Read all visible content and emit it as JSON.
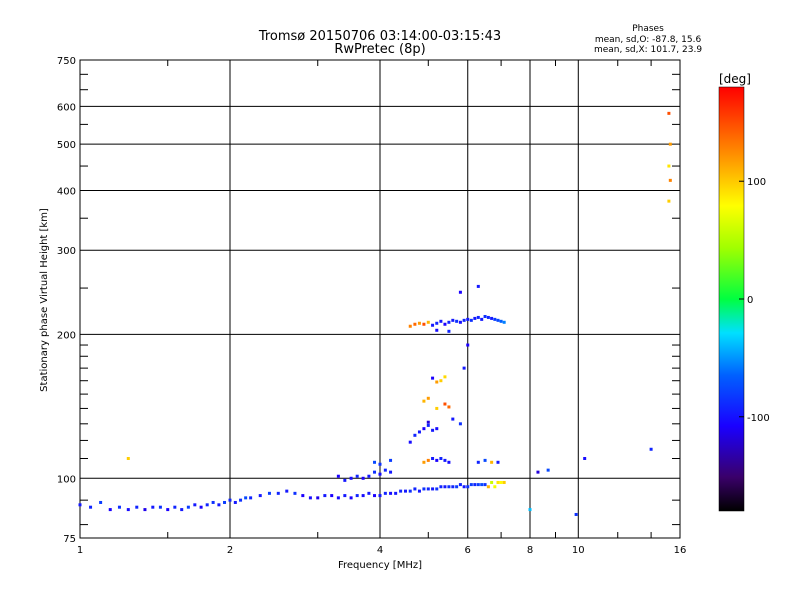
{
  "chart_data": {
    "type": "scatter",
    "title": "Tromsø 20150706 03:14:00-03:15:43",
    "subtitle": "RwPretec (8p)",
    "stats": {
      "heading": "Phases",
      "line1": "mean, sd,O: -87.8, 15.6",
      "line2": "mean, sd,X: 101.7, 23.9"
    },
    "xlabel": "Frequency [MHz]",
    "ylabel": "Stationary phase Virtual Height [km]",
    "xscale": "log",
    "yscale": "log",
    "xlim": [
      1,
      16
    ],
    "ylim": [
      75,
      750
    ],
    "x_ticks": [
      1,
      2,
      4,
      6,
      8,
      10,
      16
    ],
    "x_tick_labels": [
      "1",
      "2",
      "4",
      "6",
      "8",
      "10",
      "16"
    ],
    "y_ticks": [
      75,
      100,
      200,
      300,
      400,
      500,
      600,
      750
    ],
    "y_tick_labels": [
      "75",
      "100",
      "200",
      "300",
      "400",
      "500",
      "600",
      "750"
    ],
    "grid": true,
    "colorbar": {
      "label": "[deg]",
      "range": [
        -180,
        180
      ],
      "ticks": [
        100,
        0,
        -100
      ],
      "tick_labels": [
        "100",
        "0",
        "-100"
      ]
    },
    "series": [
      {
        "points": [
          [
            1.0,
            88,
            -100
          ],
          [
            1.05,
            87,
            -95
          ],
          [
            1.1,
            89,
            -85
          ],
          [
            1.15,
            86,
            -110
          ],
          [
            1.2,
            87,
            -90
          ],
          [
            1.25,
            86,
            -105
          ],
          [
            1.3,
            87,
            -95
          ],
          [
            1.35,
            86,
            -115
          ],
          [
            1.4,
            87,
            -100
          ],
          [
            1.45,
            87,
            -90
          ],
          [
            1.5,
            86,
            -110
          ],
          [
            1.55,
            87,
            -95
          ],
          [
            1.6,
            86,
            -100
          ],
          [
            1.65,
            87,
            -85
          ],
          [
            1.7,
            88,
            -100
          ],
          [
            1.75,
            87,
            -110
          ],
          [
            1.8,
            88,
            -95
          ],
          [
            1.85,
            89,
            -90
          ],
          [
            1.9,
            88,
            -100
          ],
          [
            1.95,
            89,
            -85
          ],
          [
            2.0,
            90,
            -95
          ],
          [
            2.05,
            89,
            -100
          ],
          [
            2.1,
            90,
            -90
          ],
          [
            2.15,
            91,
            -80
          ],
          [
            2.2,
            91,
            -95
          ],
          [
            2.3,
            92,
            -100
          ],
          [
            2.4,
            93,
            -85
          ],
          [
            2.5,
            93,
            -95
          ],
          [
            2.6,
            94,
            -100
          ],
          [
            2.7,
            93,
            -90
          ],
          [
            2.8,
            92,
            -110
          ],
          [
            2.9,
            91,
            -105
          ],
          [
            3.0,
            91,
            -115
          ],
          [
            3.1,
            92,
            -100
          ],
          [
            3.2,
            92,
            -110
          ],
          [
            3.3,
            91,
            -105
          ],
          [
            3.4,
            92,
            -100
          ],
          [
            3.5,
            91,
            -110
          ],
          [
            3.6,
            92,
            -95
          ],
          [
            3.7,
            92,
            -105
          ],
          [
            3.8,
            93,
            -100
          ],
          [
            3.9,
            92,
            -110
          ],
          [
            4.0,
            92,
            -100
          ],
          [
            4.1,
            93,
            -95
          ],
          [
            4.2,
            93,
            -105
          ],
          [
            4.3,
            93,
            -100
          ],
          [
            4.4,
            94,
            -95
          ],
          [
            4.5,
            94,
            -100
          ],
          [
            4.6,
            94,
            -90
          ],
          [
            4.7,
            95,
            -95
          ],
          [
            4.8,
            94,
            -100
          ],
          [
            4.9,
            95,
            -90
          ],
          [
            5.0,
            95,
            -95
          ],
          [
            5.1,
            95,
            -100
          ],
          [
            5.2,
            95,
            -90
          ],
          [
            5.3,
            96,
            -95
          ],
          [
            5.4,
            96,
            -100
          ],
          [
            5.5,
            96,
            -90
          ],
          [
            5.6,
            96,
            -95
          ],
          [
            5.7,
            96,
            -85
          ],
          [
            5.8,
            97,
            -95
          ],
          [
            5.9,
            96,
            -100
          ],
          [
            6.0,
            96,
            -90
          ],
          [
            6.1,
            97,
            -85
          ],
          [
            6.2,
            97,
            -95
          ],
          [
            6.3,
            97,
            -85
          ],
          [
            6.4,
            97,
            -80
          ],
          [
            6.5,
            97,
            -90
          ],
          [
            6.7,
            98,
            60
          ],
          [
            6.9,
            98,
            90
          ],
          [
            6.6,
            96,
            110
          ],
          [
            7.0,
            98,
            80
          ],
          [
            7.1,
            98,
            100
          ],
          [
            6.8,
            96,
            75
          ],
          [
            3.3,
            101,
            -110
          ],
          [
            3.4,
            99,
            -100
          ],
          [
            3.5,
            100,
            -105
          ],
          [
            3.6,
            101,
            -95
          ],
          [
            3.7,
            100,
            -110
          ],
          [
            3.8,
            101,
            -100
          ],
          [
            3.9,
            103,
            -90
          ],
          [
            4.0,
            102,
            -105
          ],
          [
            4.1,
            104,
            -95
          ],
          [
            4.2,
            103,
            -100
          ],
          [
            3.9,
            108,
            -80
          ],
          [
            4.0,
            107,
            -90
          ],
          [
            4.2,
            109,
            -85
          ],
          [
            4.9,
            108,
            120
          ],
          [
            5.0,
            109,
            130
          ],
          [
            5.1,
            110,
            -100
          ],
          [
            5.2,
            109,
            -110
          ],
          [
            5.3,
            110,
            -95
          ],
          [
            5.4,
            109,
            -100
          ],
          [
            5.5,
            108,
            -105
          ],
          [
            6.3,
            108,
            -95
          ],
          [
            6.5,
            109,
            -80
          ],
          [
            6.7,
            108,
            110
          ],
          [
            6.9,
            108,
            -100
          ],
          [
            4.8,
            125,
            -100
          ],
          [
            4.9,
            127,
            -110
          ],
          [
            5.0,
            129,
            -95
          ],
          [
            5.1,
            126,
            -100
          ],
          [
            5.2,
            127,
            -105
          ],
          [
            5.0,
            131,
            -120
          ],
          [
            5.6,
            133,
            -100
          ],
          [
            5.8,
            130,
            -90
          ],
          [
            4.6,
            119,
            -105
          ],
          [
            4.7,
            123,
            -95
          ],
          [
            4.9,
            145,
            110
          ],
          [
            5.0,
            147,
            120
          ],
          [
            5.2,
            140,
            100
          ],
          [
            5.4,
            143,
            150
          ],
          [
            5.5,
            141,
            140
          ],
          [
            5.3,
            160,
            100
          ],
          [
            5.4,
            163,
            95
          ],
          [
            5.2,
            159,
            120
          ],
          [
            5.1,
            162,
            -110
          ],
          [
            6.0,
            190,
            -110
          ],
          [
            5.9,
            170,
            -100
          ],
          [
            4.6,
            208,
            130
          ],
          [
            4.7,
            210,
            140
          ],
          [
            4.8,
            211,
            120
          ],
          [
            4.9,
            210,
            150
          ],
          [
            5.0,
            212,
            110
          ],
          [
            5.1,
            209,
            -100
          ],
          [
            5.2,
            211,
            -95
          ],
          [
            5.3,
            213,
            -100
          ],
          [
            5.4,
            210,
            -110
          ],
          [
            5.5,
            212,
            -95
          ],
          [
            5.6,
            214,
            -100
          ],
          [
            5.7,
            213,
            -90
          ],
          [
            5.8,
            212,
            -105
          ],
          [
            5.9,
            214,
            -95
          ],
          [
            6.0,
            215,
            -100
          ],
          [
            6.1,
            214,
            -90
          ],
          [
            6.2,
            216,
            -100
          ],
          [
            6.3,
            217,
            -95
          ],
          [
            6.4,
            215,
            -100
          ],
          [
            6.5,
            218,
            -90
          ],
          [
            6.6,
            217,
            -95
          ],
          [
            6.7,
            216,
            -100
          ],
          [
            6.8,
            215,
            -85
          ],
          [
            6.9,
            214,
            -80
          ],
          [
            7.0,
            213,
            -70
          ],
          [
            7.1,
            212,
            -60
          ],
          [
            5.8,
            245,
            -110
          ],
          [
            6.3,
            252,
            -100
          ],
          [
            5.2,
            204,
            -105
          ],
          [
            5.5,
            203,
            -95
          ],
          [
            1.25,
            110,
            100
          ],
          [
            8.3,
            103,
            -120
          ],
          [
            8.7,
            104,
            -80
          ],
          [
            10.3,
            110,
            -105
          ],
          [
            9.9,
            84,
            -90
          ],
          [
            14.0,
            115,
            -95
          ],
          [
            8.0,
            86,
            -40
          ],
          [
            15.2,
            580,
            150
          ],
          [
            15.3,
            500,
            120
          ],
          [
            15.2,
            450,
            90
          ],
          [
            15.3,
            420,
            130
          ],
          [
            15.2,
            380,
            100
          ]
        ]
      }
    ]
  }
}
